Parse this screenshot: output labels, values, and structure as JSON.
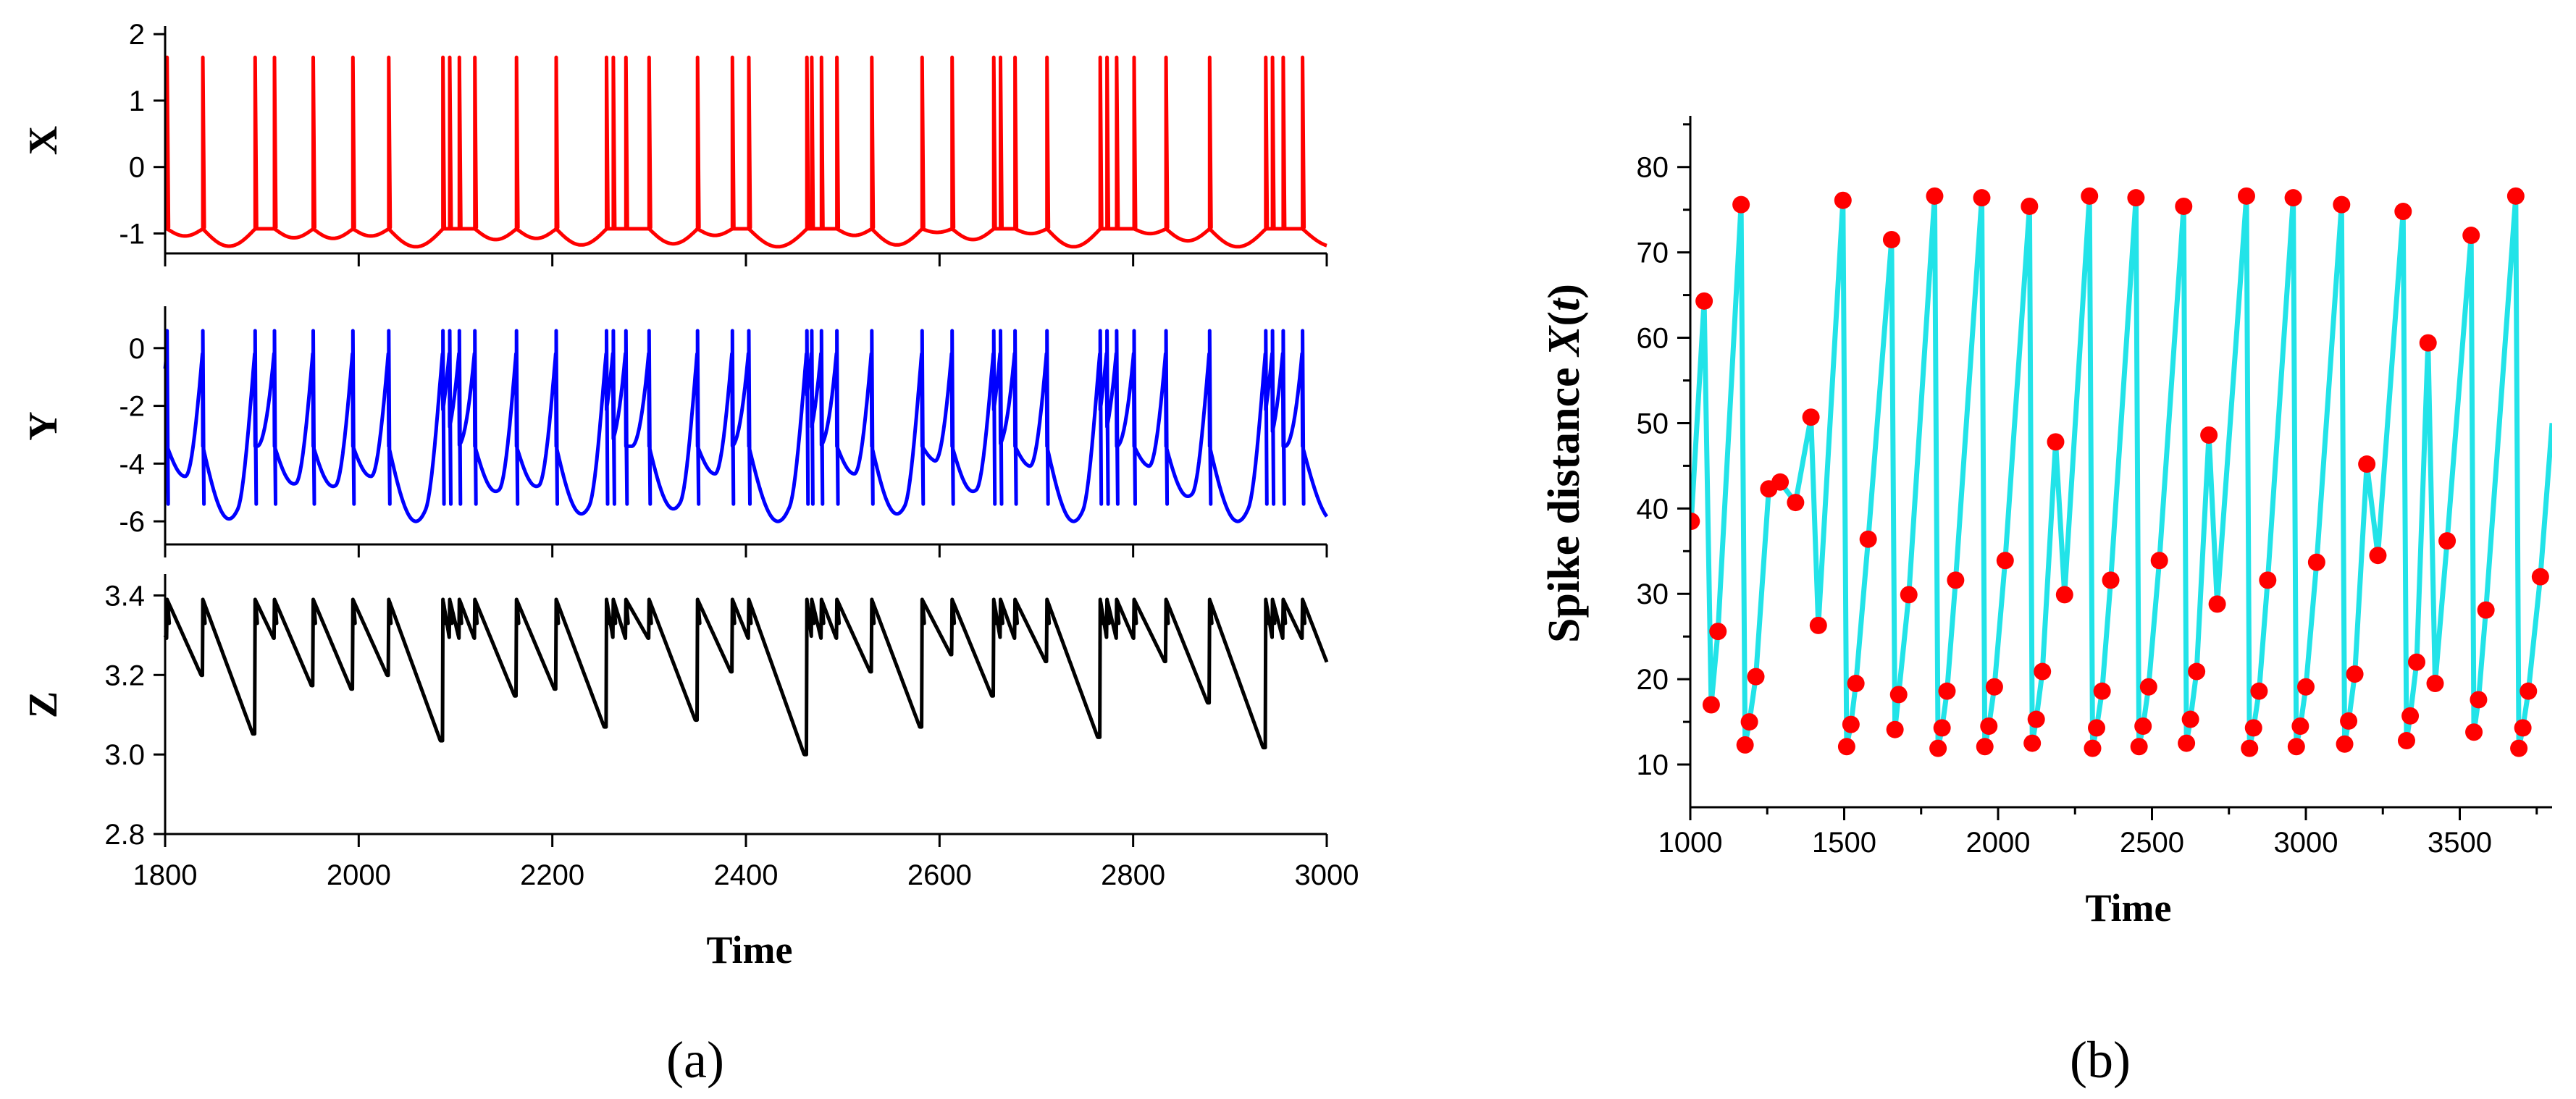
{
  "panel_labels": {
    "a": "(a)",
    "b": "(b)"
  },
  "colors": {
    "x_trace": "#ff0000",
    "y_trace": "#0000ff",
    "z_trace": "#000000",
    "b_line": "#22e3e8",
    "b_dots": "#ff0000"
  },
  "chart_data": [
    {
      "type": "line",
      "panel": "a",
      "xlabel": "Time",
      "xlim": [
        1800,
        3000
      ],
      "xticks": [
        "1800",
        "2000",
        "2200",
        "2400",
        "2600",
        "2800",
        "3000"
      ],
      "spike_times": [
        1802,
        1839,
        1893,
        1913,
        1953,
        1994,
        2031,
        2087,
        2094,
        2104,
        2120,
        2163,
        2204,
        2256,
        2263,
        2276,
        2300,
        2350,
        2386,
        2403,
        2463,
        2468,
        2478,
        2494,
        2530,
        2582,
        2613,
        2656,
        2663,
        2678,
        2711,
        2766,
        2773,
        2783,
        2801,
        2834,
        2879,
        2937,
        2944,
        2955,
        2975
      ],
      "subplots": [
        {
          "name": "X",
          "ylabel": "X",
          "ylim": [
            -1.3,
            2.1
          ],
          "yticks": [
            "-1",
            "0",
            "1",
            "2"
          ],
          "spike_peak": 1.65,
          "baseline": -0.93,
          "trough": -1.2
        },
        {
          "name": "Y",
          "ylabel": "Y",
          "ylim": [
            -6.8,
            1.4
          ],
          "yticks": [
            "-6",
            "-4",
            "-2",
            "0"
          ],
          "spike_peak": 0.6,
          "spike_dip": -5.4,
          "baseline": -3.4,
          "trough": -6.0
        },
        {
          "name": "Z",
          "ylabel": "Z",
          "ylim": [
            2.8,
            3.45
          ],
          "yticks": [
            "2.8",
            "3.0",
            "3.2",
            "3.4"
          ],
          "peak": 3.39,
          "trough": 3.0
        }
      ]
    },
    {
      "type": "line",
      "panel": "b",
      "xlabel": "Time",
      "ylabel": "Spike distance X(t)",
      "ylabel_parts": {
        "prefix": "Spike distance ",
        "var": "X",
        "open": "(",
        "arg": "t",
        "close": ")"
      },
      "xlim": [
        1000,
        3800
      ],
      "ylim": [
        5,
        86
      ],
      "xticks": [
        "1000",
        "1500",
        "2000",
        "2500",
        "3000",
        "3500"
      ],
      "yticks": [
        "10",
        "20",
        "30",
        "40",
        "50",
        "60",
        "70",
        "80"
      ],
      "points": [
        [
          1003,
          38.5
        ],
        [
          1045,
          64.3
        ],
        [
          1068,
          17.0
        ],
        [
          1090,
          25.6
        ],
        [
          1165,
          75.6
        ],
        [
          1178,
          12.3
        ],
        [
          1192,
          15.0
        ],
        [
          1213,
          20.3
        ],
        [
          1255,
          42.3
        ],
        [
          1292,
          43.1
        ],
        [
          1342,
          40.7
        ],
        [
          1392,
          50.7
        ],
        [
          1416,
          26.3
        ],
        [
          1496,
          76.1
        ],
        [
          1508,
          12.1
        ],
        [
          1522,
          14.7
        ],
        [
          1538,
          19.5
        ],
        [
          1578,
          36.4
        ],
        [
          1654,
          71.5
        ],
        [
          1665,
          14.1
        ],
        [
          1677,
          18.2
        ],
        [
          1710,
          29.9
        ],
        [
          1794,
          76.6
        ],
        [
          1805,
          11.9
        ],
        [
          1818,
          14.3
        ],
        [
          1834,
          18.6
        ],
        [
          1862,
          31.6
        ],
        [
          1947,
          76.4
        ],
        [
          1957,
          12.1
        ],
        [
          1970,
          14.5
        ],
        [
          1988,
          19.1
        ],
        [
          2023,
          33.9
        ],
        [
          2102,
          75.4
        ],
        [
          2111,
          12.5
        ],
        [
          2124,
          15.3
        ],
        [
          2144,
          20.9
        ],
        [
          2187,
          47.8
        ],
        [
          2216,
          29.9
        ],
        [
          2297,
          76.6
        ],
        [
          2307,
          11.9
        ],
        [
          2320,
          14.3
        ],
        [
          2338,
          18.6
        ],
        [
          2366,
          31.6
        ],
        [
          2448,
          76.4
        ],
        [
          2458,
          12.1
        ],
        [
          2471,
          14.5
        ],
        [
          2489,
          19.1
        ],
        [
          2524,
          33.9
        ],
        [
          2603,
          75.4
        ],
        [
          2612,
          12.5
        ],
        [
          2625,
          15.3
        ],
        [
          2645,
          20.9
        ],
        [
          2685,
          48.6
        ],
        [
          2712,
          28.8
        ],
        [
          2807,
          76.6
        ],
        [
          2817,
          11.9
        ],
        [
          2830,
          14.3
        ],
        [
          2848,
          18.6
        ],
        [
          2876,
          31.6
        ],
        [
          2959,
          76.4
        ],
        [
          2969,
          12.1
        ],
        [
          2982,
          14.5
        ],
        [
          3000,
          19.1
        ],
        [
          3035,
          33.7
        ],
        [
          3116,
          75.6
        ],
        [
          3126,
          12.4
        ],
        [
          3139,
          15.1
        ],
        [
          3159,
          20.6
        ],
        [
          3198,
          45.2
        ],
        [
          3234,
          34.5
        ],
        [
          3316,
          74.8
        ],
        [
          3327,
          12.8
        ],
        [
          3339,
          15.7
        ],
        [
          3360,
          22.0
        ],
        [
          3397,
          59.4
        ],
        [
          3420,
          19.5
        ],
        [
          3459,
          36.2
        ],
        [
          3537,
          72.0
        ],
        [
          3546,
          13.8
        ],
        [
          3561,
          17.6
        ],
        [
          3585,
          28.1
        ],
        [
          3682,
          76.6
        ],
        [
          3692,
          11.9
        ],
        [
          3705,
          14.3
        ],
        [
          3723,
          18.6
        ],
        [
          3762,
          32.0
        ]
      ],
      "line_end": [
        3800,
        50
      ]
    }
  ]
}
